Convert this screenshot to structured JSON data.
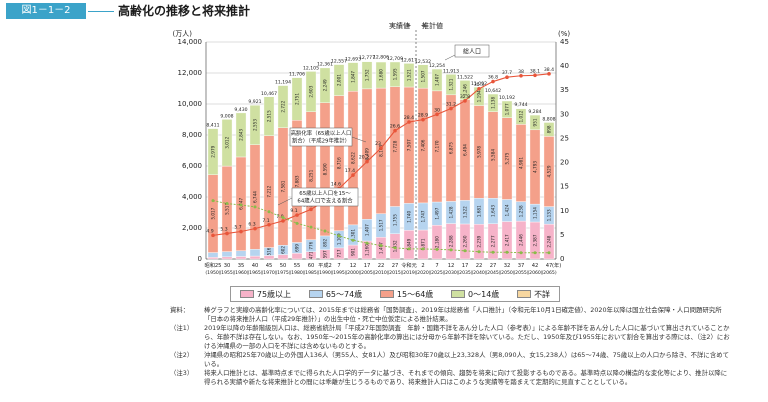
{
  "figure": {
    "label": "図1－1－2",
    "title": "高齢化の推移と将来推計"
  },
  "colors": {
    "age75": "#f6b3c9",
    "age65_74": "#b6d4ef",
    "age15_64": "#f4a08a",
    "age0_14": "#cfe0a1",
    "unknown": "#f7d7a0",
    "rate_line": "#e8553a",
    "support_line": "#8bbb4a"
  },
  "chart_data": {
    "type": "bar",
    "title": "高齢化の推移と将来推計",
    "left_unit": "(万人)",
    "right_unit": "(%)",
    "x_unit": "(年)",
    "ylim": [
      0,
      14000
    ],
    "ylim_right": [
      0,
      45
    ],
    "y_ticks": [
      "0",
      "2,000",
      "4,000",
      "6,000",
      "8,000",
      "10,000",
      "12,000",
      "14,000"
    ],
    "y_right_ticks": [
      "0",
      "5",
      "10",
      "15",
      "20",
      "25",
      "30",
      "35",
      "40",
      "45"
    ],
    "categories": [
      "昭和25",
      "30",
      "35",
      "40",
      "45",
      "50",
      "55",
      "60",
      "平成2",
      "7",
      "12",
      "17",
      "22",
      "27",
      "令和元",
      "2",
      "7",
      "12",
      "17",
      "22",
      "27",
      "32",
      "37",
      "42",
      "47"
    ],
    "categories_sub": [
      "(1950)",
      "(1955)",
      "(1960)",
      "(1965)",
      "(1970)",
      "(1975)",
      "(1980)",
      "(1985)",
      "(1990)",
      "(1995)",
      "(2000)",
      "(2005)",
      "(2010)",
      "(2015)",
      "(2019)",
      "(2020)",
      "(2025)",
      "(2030)",
      "(2035)",
      "(2040)",
      "(2045)",
      "(2050)",
      "(2055)",
      "(2060)",
      "(2065)"
    ],
    "series": [
      {
        "name": "75歳以上",
        "values": [
          107,
          139,
          163,
          189,
          224,
          284,
          366,
          471,
          597,
          717,
          901,
          1160,
          1407,
          1632,
          1849,
          1871,
          2180,
          2288,
          2260,
          2239,
          2277,
          2417,
          2446,
          2387,
          2248
        ]
      },
      {
        "name": "65～74歳",
        "values": [
          309,
          338,
          373,
          435,
          516,
          602,
          699,
          776,
          892,
          1109,
          1301,
          1407,
          1517,
          1755,
          1740,
          1747,
          1497,
          1428,
          1522,
          1681,
          1643,
          1424,
          1258,
          1154,
          1133
        ]
      },
      {
        "name": "15～64歳",
        "values": [
          5017,
          5517,
          6047,
          6744,
          7212,
          7581,
          7883,
          8251,
          8590,
          8716,
          8622,
          8409,
          8103,
          7728,
          7507,
          7406,
          7170,
          6875,
          6494,
          5978,
          5584,
          5275,
          4981,
          4793,
          4529
        ]
      },
      {
        "name": "0～14歳",
        "values": [
          2979,
          3012,
          2843,
          2553,
          2515,
          2722,
          2751,
          2603,
          2249,
          2001,
          1847,
          1752,
          1680,
          1595,
          1521,
          1507,
          1407,
          1321,
          1246,
          1194,
          1138,
          1077,
          1012,
          951,
          898
        ]
      },
      {
        "name": "不詳",
        "values": [
          0,
          0,
          0,
          0,
          0,
          0,
          0,
          0,
          0,
          0,
          0,
          0,
          0,
          0,
          0,
          0,
          0,
          0,
          0,
          0,
          0,
          0,
          0,
          0,
          0
        ]
      }
    ],
    "totals": [
      8411,
      9008,
      9430,
      9921,
      10467,
      11194,
      11706,
      12105,
      12361,
      12557,
      12693,
      12777,
      12806,
      12709,
      12617,
      12532,
      12254,
      11913,
      11522,
      11092,
      10642,
      10192,
      9744,
      9284,
      8808
    ],
    "aging_rate": {
      "name": "高齢化率（65歳以上人口割合）（平成29年推計）",
      "values": [
        4.9,
        5.3,
        5.7,
        6.3,
        7.1,
        7.9,
        9.1,
        10.3,
        12.1,
        14.6,
        17.4,
        20.2,
        23.0,
        26.6,
        28.4,
        28.9,
        30.0,
        31.2,
        32.8,
        35.3,
        36.8,
        37.7,
        38.0,
        38.1,
        38.4
      ]
    },
    "support_ratio": {
      "name": "65歳以上人口を15～64歳人口で支える割合",
      "values": [
        12.1,
        11.5,
        11.2,
        10.8,
        9.8,
        8.6,
        7.4,
        6.6,
        5.8,
        4.8,
        3.9,
        3.3,
        2.8,
        2.3,
        2.1,
        2.1,
        2.0,
        1.9,
        1.7,
        1.5,
        1.4,
        1.4,
        1.3,
        1.3,
        1.3
      ]
    },
    "support_labels_shown": [
      "12.1",
      "11.5",
      "11.2",
      "10.8",
      "9.8",
      "8.6",
      "7.4",
      "6.6",
      "5.8",
      "4.8",
      "3.9",
      "3.3",
      "2.8",
      "2.3",
      "2.1",
      "2.0",
      "1.9",
      "1.7",
      "1.5",
      "1.4",
      "1.3"
    ]
  },
  "annotations": {
    "actual": "実績値",
    "estimate": "推計値",
    "total_population": "総人口",
    "aging_rate_label_1": "高齢化率（65歳以上人口",
    "aging_rate_label_2": "割合）（平成29年推計）",
    "support_label_1": "65歳以上人口を15～",
    "support_label_2": "64歳人口で支える割合"
  },
  "legend": [
    "75歳以上",
    "65～74歳",
    "15～64歳",
    "0～14歳",
    "不詳"
  ],
  "notes": [
    {
      "head": "資料：",
      "body": "棒グラフと実線の高齢化率については、2015年までは総務省「国勢調査」、2019年は総務省「人口推計」（令和元年10月1日確定値）、2020年以降は国立社会保障・人口問題研究所「日本の将来推計人口（平成29年推計）」の出生中位・死亡中位仮定による推計結果。"
    },
    {
      "head": "（注1）",
      "body": "2019年以降の年齢階級別人口は、総務省統計局「平成27年国勢調査　年齢・国籍不詳をあん分した人口（参考表）」による年齢不詳をあん分した人口に基づいて算出されていることから、年齢不詳は存在しない。なお、1950年～2015年の高齢化率の算出には分母から年齢不詳を除いている。ただし、1950年及び1955年において割合を算出する際には、（注2）における沖縄県の一部の人口を不詳には含めないものとする。"
    },
    {
      "head": "（注2）",
      "body": "沖縄県の昭和25年70歳以上の外国人136人（男55人、女81人）及び昭和30年70歳以上23,328人（男8,090人、女15,238人）は65～74歳、75歳以上の人口から除き、不詳に含めている。"
    },
    {
      "head": "（注3）",
      "body": "将来人口推計とは、基準時点までに得られた人口学的データに基づき、それまでの傾向、趨勢を将来に向けて投影するものである。基準時点以降の構造的な変化等により、推計以降に得られる実績や新たな将来推計との間には乖離が生じうるものであり、将来推計人口はこのような実績等を踏まえて定期的に見直すこととしている。"
    }
  ]
}
